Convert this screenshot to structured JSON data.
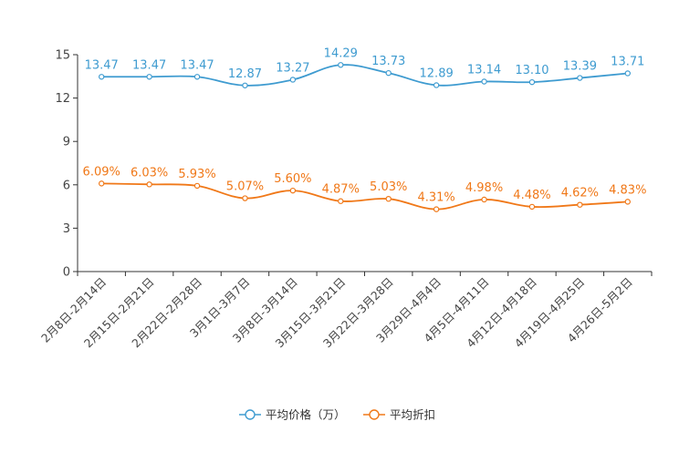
{
  "chart_data": {
    "type": "line",
    "title": "",
    "xlabel": "",
    "ylabel": "",
    "ylim": [
      0,
      15
    ],
    "yticks": [
      0,
      3,
      6,
      9,
      12,
      15
    ],
    "categories": [
      "2月8日-2月14日",
      "2月15日-2月21日",
      "2月22日-2月28日",
      "3月1日-3月7日",
      "3月8日-3月14日",
      "3月15日-3月21日",
      "3月22日-3月28日",
      "3月29日-4月4日",
      "4月5日-4月11日",
      "4月12日-4月18日",
      "4月19日-4月25日",
      "4月26日-5月2日"
    ],
    "series": [
      {
        "name": "平均价格（万）",
        "color": "#3e9bd0",
        "values": [
          13.47,
          13.47,
          13.47,
          12.87,
          13.27,
          14.29,
          13.73,
          12.89,
          13.14,
          13.1,
          13.39,
          13.71
        ],
        "labels": [
          "13.47",
          "13.47",
          "13.47",
          "12.87",
          "13.27",
          "14.29",
          "13.73",
          "12.89",
          "13.14",
          "13.10",
          "13.39",
          "13.71"
        ]
      },
      {
        "name": "平均折扣",
        "color": "#f07818",
        "values": [
          6.09,
          6.03,
          5.93,
          5.07,
          5.6,
          4.87,
          5.03,
          4.31,
          4.98,
          4.48,
          4.62,
          4.83
        ],
        "labels": [
          "6.09%",
          "6.03%",
          "5.93%",
          "5.07%",
          "5.60%",
          "4.87%",
          "5.03%",
          "4.31%",
          "4.98%",
          "4.48%",
          "4.62%",
          "4.83%"
        ]
      }
    ],
    "grid": false,
    "legend": "bottom-center"
  }
}
